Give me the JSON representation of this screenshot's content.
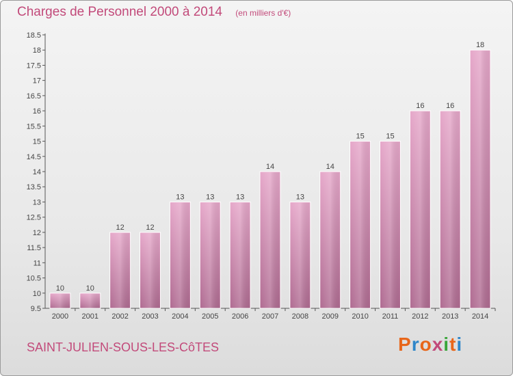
{
  "header": {
    "title": "Charges de Personnel 2000 à 2014",
    "subtitle": "(en milliers d'€)"
  },
  "footer": {
    "commune": "SAINT-JULIEN-SOUS-LES-CôTES",
    "logo": "Proxiti",
    "logo_colors": [
      "#e8661a",
      "#2e86c9",
      "#e8661a",
      "#c24a7a",
      "#3aa63a",
      "#e8661a",
      "#2e86c9"
    ]
  },
  "colors": {
    "bar_top": "#e6a8ca",
    "bar_bottom": "#b06c92",
    "axis": "#555555",
    "title": "#c24a7a"
  },
  "chart_data": {
    "type": "bar",
    "categories": [
      "2000",
      "2001",
      "2002",
      "2003",
      "2004",
      "2005",
      "2006",
      "2007",
      "2008",
      "2009",
      "2010",
      "2011",
      "2012",
      "2013",
      "2014"
    ],
    "values": [
      10,
      10,
      12,
      12,
      13,
      13,
      13,
      14,
      13,
      14,
      15,
      15,
      16,
      16,
      18
    ],
    "data_labels": [
      "10",
      "10",
      "12",
      "12",
      "13",
      "13",
      "13",
      "14",
      "13",
      "14",
      "15",
      "15",
      "16",
      "16",
      "18"
    ],
    "yticks": [
      "9.5",
      "10",
      "10.5",
      "11",
      "11.5",
      "12",
      "12.5",
      "13",
      "13.5",
      "14",
      "14.5",
      "15",
      "15.5",
      "16",
      "16.5",
      "17",
      "17.5",
      "18",
      "18.5"
    ],
    "ylim": [
      9.5,
      18.5
    ],
    "grid": false
  }
}
